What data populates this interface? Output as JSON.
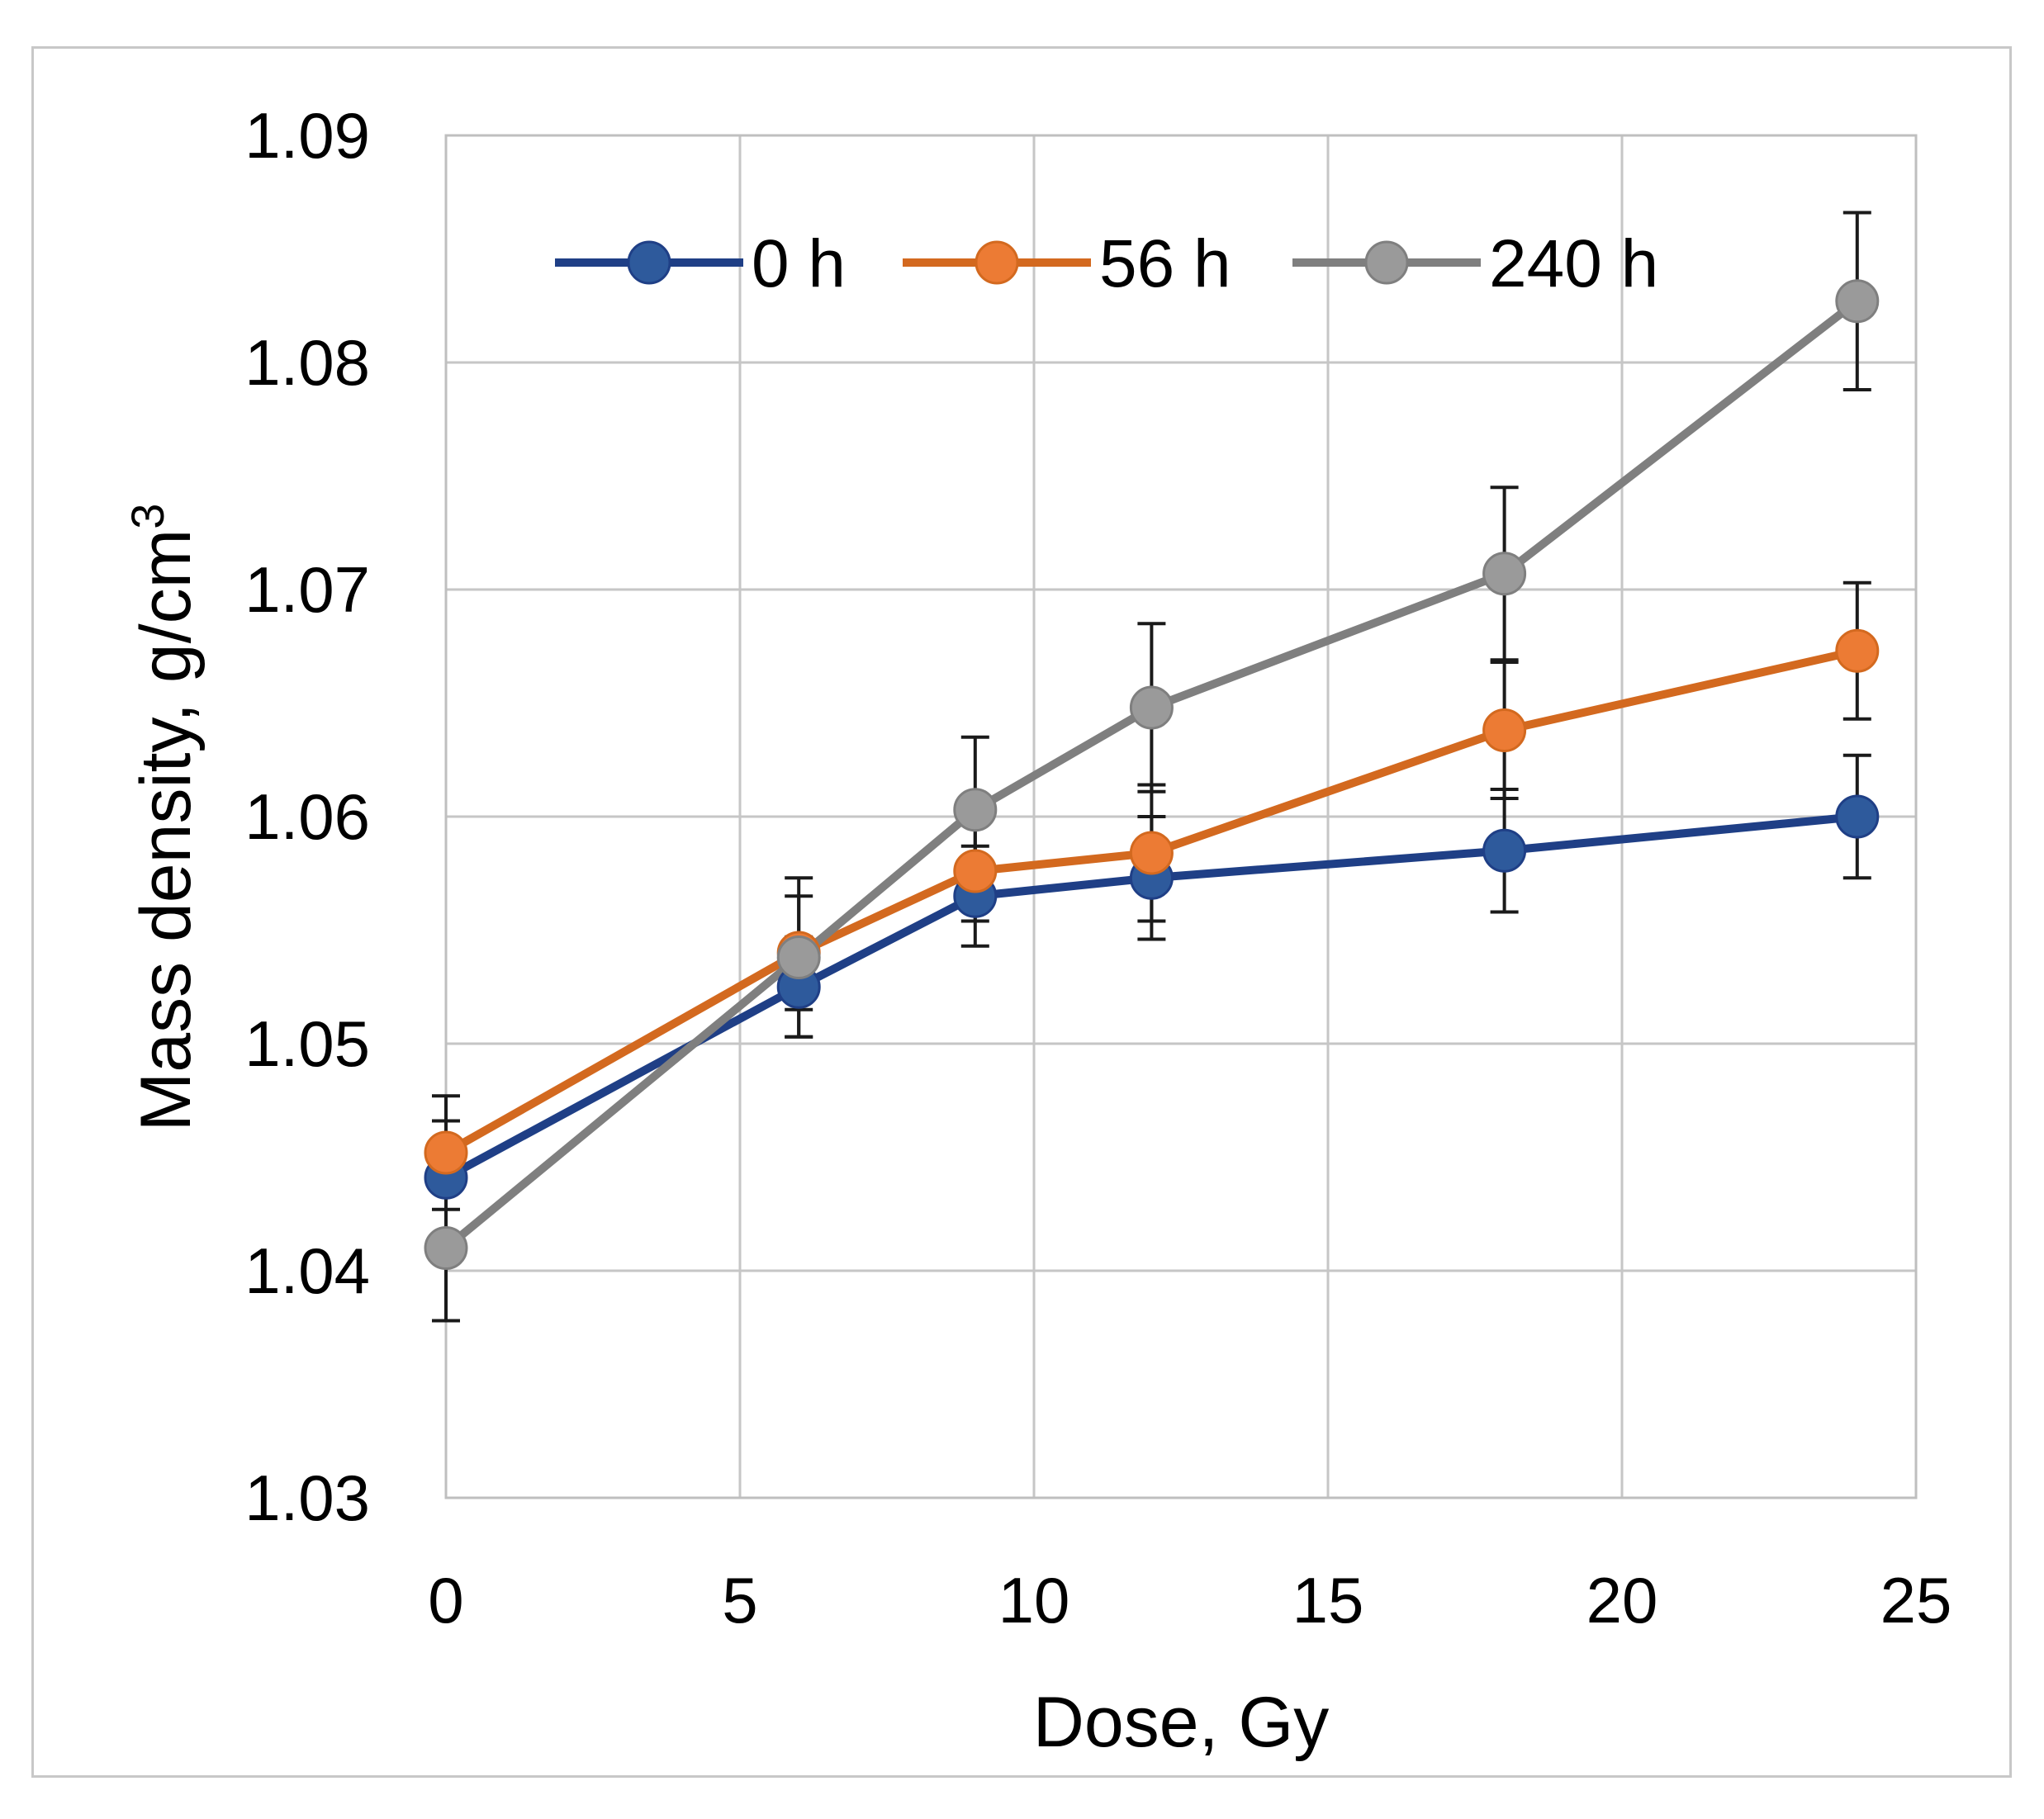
{
  "chart_data": {
    "type": "line",
    "title": "",
    "xlabel": "Dose, Gy",
    "ylabel": "Mass density, g/cm",
    "ylabel_superscript": "3",
    "xlim": [
      0,
      25
    ],
    "ylim": [
      1.03,
      1.09
    ],
    "xticks": [
      0,
      5,
      10,
      15,
      20,
      25
    ],
    "xtick_labels": [
      "0",
      "5",
      "10",
      "15",
      "20",
      "25"
    ],
    "yticks": [
      1.03,
      1.04,
      1.05,
      1.06,
      1.07,
      1.08,
      1.09
    ],
    "ytick_labels": [
      "1.03",
      "1.04",
      "1.05",
      "1.06",
      "1.07",
      "1.08",
      "1.09"
    ],
    "grid": true,
    "legend_position": "top",
    "x": [
      0,
      6,
      9,
      12,
      18,
      24
    ],
    "series": [
      {
        "name": "0 h",
        "color": "#2e5a9c",
        "line_color": "#1f3f86",
        "values": [
          1.0441,
          1.0525,
          1.0565,
          1.0573,
          1.0585,
          1.06
        ],
        "errors": [
          0.0025,
          0.0022,
          0.0022,
          0.0027,
          0.0027,
          0.0027
        ]
      },
      {
        "name": "56 h",
        "color": "#ec7b34",
        "line_color": "#d3691f",
        "values": [
          1.0452,
          1.054,
          1.0576,
          1.0584,
          1.0638,
          1.0673
        ],
        "errors": [
          0.0025,
          0.0025,
          0.0022,
          0.003,
          0.003,
          0.003
        ]
      },
      {
        "name": "240 h",
        "color": "#9a9a9a",
        "line_color": "#7f7f7f",
        "values": [
          1.041,
          1.0538,
          1.0603,
          1.0648,
          1.0707,
          1.0827
        ],
        "errors": [
          0.0032,
          0.0035,
          0.0032,
          0.0037,
          0.0038,
          0.0039
        ]
      }
    ]
  }
}
